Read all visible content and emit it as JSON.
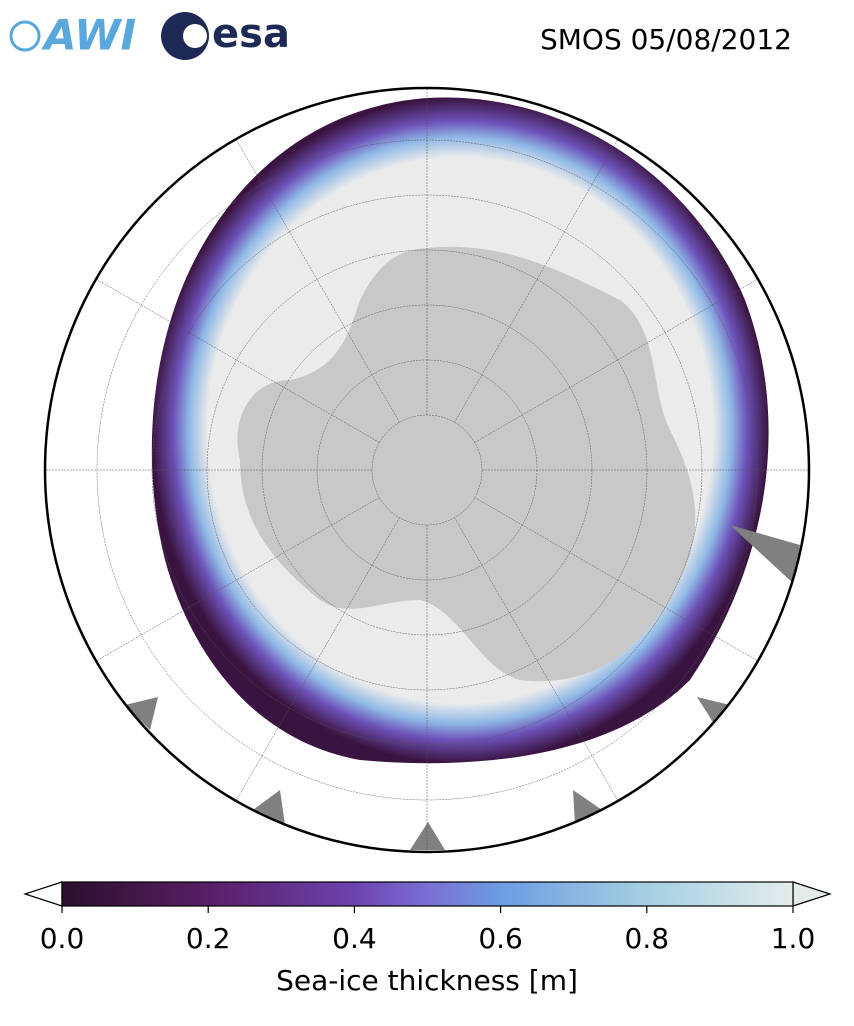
{
  "header": {
    "awi_logo": "AWI",
    "esa_logo": "esa",
    "title": "SMOS 05/08/2012"
  },
  "colorbar": {
    "label": "Sea-ice thickness [m]",
    "lim": [
      0,
      1
    ],
    "ticks": [
      {
        "value": 0,
        "label": "0.0"
      },
      0.2,
      0.4,
      0.6,
      0.8,
      {
        "value": 1,
        "label": "1.0"
      }
    ]
  }
}
